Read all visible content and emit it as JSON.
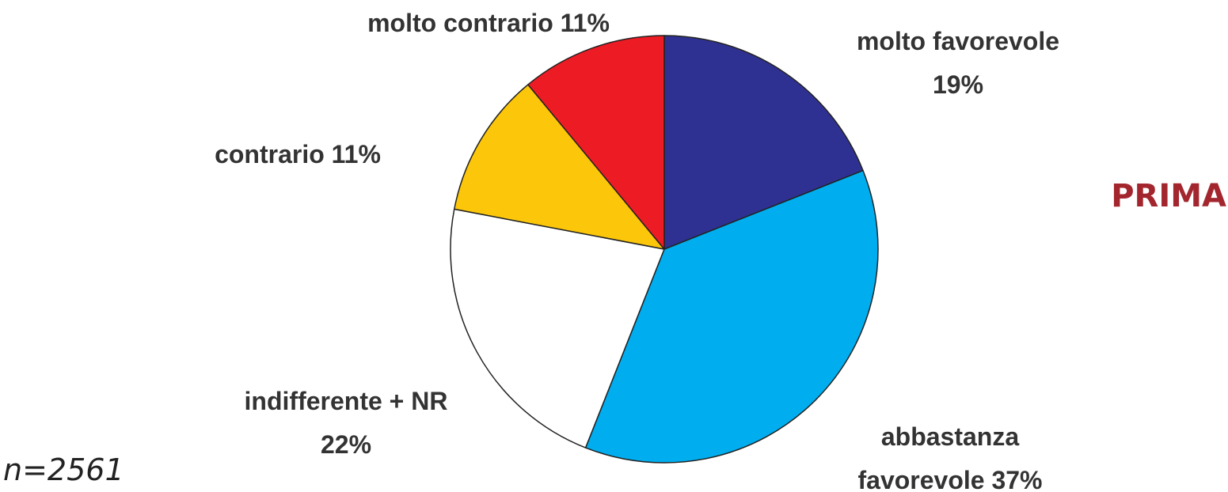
{
  "chart_data": {
    "type": "pie",
    "categories": [
      "molto favorevole",
      "abbastanza favorevole",
      "indifferente + NR",
      "contrario",
      "molto contrario"
    ],
    "values": [
      19,
      37,
      22,
      11,
      11
    ],
    "value_labels": [
      "19%",
      "37%",
      "22%",
      "11%",
      "11%"
    ],
    "colors": [
      "#2e3192",
      "#00aeef",
      "#ffffff",
      "#fcc70a",
      "#ed1c24"
    ],
    "annotations": [
      "PRIMA",
      "n=2561"
    ]
  }
}
